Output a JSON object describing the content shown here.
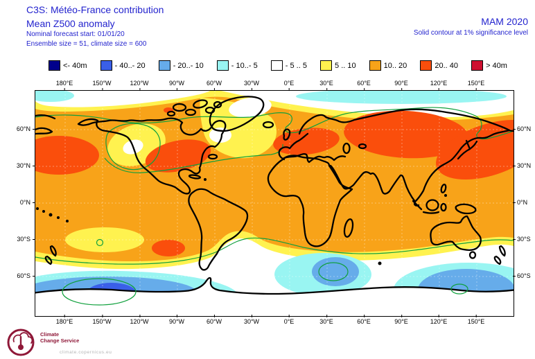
{
  "header": {
    "title": "C3S: Météo-France contribution",
    "subtitle": "Mean Z500 anomaly",
    "forecast_start": "Nominal forecast start: 01/01/20",
    "ensemble_info": "Ensemble size = 51, climate size = 600",
    "season": "MAM 2020",
    "significance_note": "Solid contour at 1% significance level",
    "text_color": "#2323CE"
  },
  "legend": {
    "units": "m",
    "items": [
      {
        "label": "<- 40m",
        "color": "#00008C"
      },
      {
        "label": "- 40..- 20",
        "color": "#3A5FE8"
      },
      {
        "label": "- 20..- 10",
        "color": "#66ACEA"
      },
      {
        "label": "- 10..- 5",
        "color": "#99F5F2"
      },
      {
        "label": "- 5 .. 5",
        "color": "#FFFFFF"
      },
      {
        "label": "5 .. 10",
        "color": "#FFF24F"
      },
      {
        "label": "10.. 20",
        "color": "#F8A319"
      },
      {
        "label": "20.. 40",
        "color": "#FA4E0C"
      },
      {
        "label": "> 40m",
        "color": "#CE1030"
      }
    ]
  },
  "map": {
    "x_labels": [
      "180°E",
      "150°W",
      "120°W",
      "90°W",
      "60°W",
      "30°W",
      "0°E",
      "30°E",
      "60°E",
      "90°E",
      "120°E",
      "150°E"
    ],
    "y_labels": [
      "60°N",
      "30°N",
      "0°N",
      "30°S",
      "60°S"
    ],
    "contour_color": "#0FA03C",
    "coast_color": "#000000",
    "anomaly_summary": [
      {
        "region": "North Pacific / Gulf of Alaska",
        "anomaly_m": "20..40"
      },
      {
        "region": "Western North America",
        "anomaly_m": "20..40"
      },
      {
        "region": "Europe",
        "anomaly_m": "20..40"
      },
      {
        "region": "Siberia",
        "anomaly_m": "20..40"
      },
      {
        "region": "Northeast Asia / NW Pacific",
        "anomaly_m": "20..40"
      },
      {
        "region": "South Pacific near 30°S 120°W",
        "anomaly_m": "20..40"
      },
      {
        "region": "Most mid and low latitudes",
        "anomaly_m": "10..20"
      },
      {
        "region": "Alaska / Yukon and NE Canada-Greenland patches",
        "anomaly_m": "5..10 with -5..5 cores"
      },
      {
        "region": "High Arctic cap",
        "anomaly_m": "-5..5"
      },
      {
        "region": "Arctic ~70°N Eurasian band",
        "anomaly_m": "-10..-5"
      },
      {
        "region": "Southern Ocean band ~45-55°S",
        "anomaly_m": "-5..5"
      },
      {
        "region": "South Pacific ~60°S core",
        "anomaly_m": "-40..-20"
      },
      {
        "region": "South Atlantic / Indian Ocean ~60°S",
        "anomaly_m": "-20..-10"
      },
      {
        "region": "South of Australia ~60°S",
        "anomaly_m": "-20..-10"
      }
    ]
  },
  "logo": {
    "line1": "Climate",
    "line2": "Change Service",
    "url_text": "climate.copernicus.eu",
    "color": "#8F1838"
  }
}
